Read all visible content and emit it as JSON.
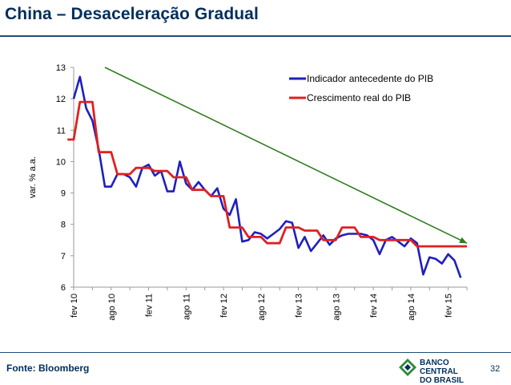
{
  "slide": {
    "title": "China – Desaceleração Gradual",
    "source": "Fonte: Bloomberg",
    "page_number": "32",
    "logo_line1": "BANCO CENTRAL",
    "logo_line2": "DO BRASIL"
  },
  "colors": {
    "title": "#002e5d",
    "series_blue": "#1f1fbf",
    "series_red": "#e02020",
    "trend": "#2e7d1f",
    "axis": "#9a9a9a"
  },
  "chart_data": {
    "type": "line",
    "title": "",
    "ylabel": "var. % a.a.",
    "xlabel": "",
    "ylim": [
      6,
      13
    ],
    "yticks": [
      "6",
      "7",
      "8",
      "9",
      "10",
      "11",
      "12",
      "13"
    ],
    "xticks": [
      "fev 10",
      "ago 10",
      "fev 11",
      "ago 11",
      "fev 12",
      "ago 12",
      "fev 13",
      "ago 13",
      "fev 14",
      "ago 14",
      "fev 15"
    ],
    "x_range": [
      "fev 10",
      "mai 15"
    ],
    "grid": false,
    "legend_position": "top-right",
    "series": [
      {
        "name": "Indicador antecedente do PIB",
        "color": "#1f1fbf",
        "values": [
          12.0,
          12.7,
          11.7,
          11.3,
          10.4,
          9.2,
          9.2,
          9.6,
          9.6,
          9.5,
          9.2,
          9.8,
          9.9,
          9.55,
          9.7,
          9.05,
          9.05,
          10.0,
          9.3,
          9.1,
          9.35,
          9.1,
          8.9,
          9.15,
          8.5,
          8.3,
          8.8,
          7.45,
          7.5,
          7.75,
          7.7,
          7.55,
          7.7,
          7.85,
          8.1,
          8.05,
          7.25,
          7.6,
          7.15,
          7.4,
          7.65,
          7.35,
          7.55,
          7.65,
          7.7,
          7.7,
          7.7,
          7.65,
          7.5,
          7.05,
          7.5,
          7.6,
          7.45,
          7.3,
          7.55,
          7.4,
          6.4,
          6.95,
          6.9,
          6.75,
          7.05,
          6.85,
          6.3
        ]
      },
      {
        "name": "Crescimento real do PIB",
        "color": "#e02020",
        "quarterly": [
          {
            "from": "jan 10",
            "to": "fev 10",
            "value": 10.7
          },
          {
            "from": "mar 10",
            "to": "mai 10",
            "value": 11.9
          },
          {
            "from": "jun 10",
            "to": "ago 10",
            "value": 10.3
          },
          {
            "from": "set 10",
            "to": "nov 10",
            "value": 9.6
          },
          {
            "from": "dez 10",
            "to": "fev 11",
            "value": 9.8
          },
          {
            "from": "mar 11",
            "to": "mai 11",
            "value": 9.7
          },
          {
            "from": "jun 11",
            "to": "ago 11",
            "value": 9.5
          },
          {
            "from": "set 11",
            "to": "nov 11",
            "value": 9.1
          },
          {
            "from": "dez 11",
            "to": "fev 12",
            "value": 8.9
          },
          {
            "from": "mar 12",
            "to": "mai 12",
            "value": 7.9
          },
          {
            "from": "jun 12",
            "to": "ago 12",
            "value": 7.6
          },
          {
            "from": "set 12",
            "to": "nov 12",
            "value": 7.4
          },
          {
            "from": "dez 12",
            "to": "fev 13",
            "value": 7.9
          },
          {
            "from": "mar 13",
            "to": "mai 13",
            "value": 7.8
          },
          {
            "from": "jun 13",
            "to": "ago 13",
            "value": 7.5
          },
          {
            "from": "set 13",
            "to": "nov 13",
            "value": 7.9
          },
          {
            "from": "dez 13",
            "to": "fev 14",
            "value": 7.6
          },
          {
            "from": "mar 14",
            "to": "mai 14",
            "value": 7.5
          },
          {
            "from": "jun 14",
            "to": "ago 14",
            "value": 7.5
          },
          {
            "from": "set 14",
            "to": "nov 14",
            "value": 7.3
          },
          {
            "from": "dez 14",
            "to": "mai 15",
            "value": 7.3
          }
        ]
      }
    ],
    "annotations": [
      {
        "type": "trend-arrow",
        "color": "#2e7d1f",
        "from": {
          "x": "jul 10",
          "y": 13.0
        },
        "to": {
          "x": "mai 15",
          "y": 7.4
        }
      }
    ]
  }
}
